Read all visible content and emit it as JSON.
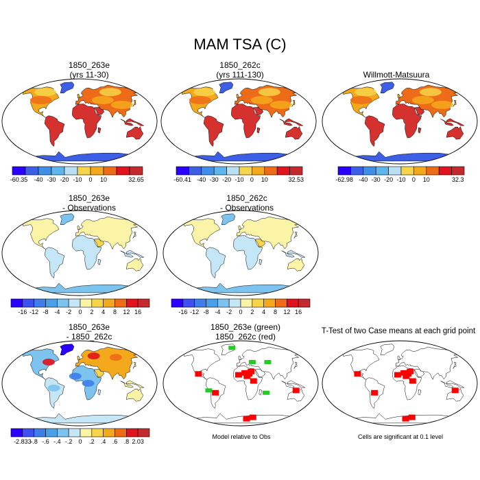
{
  "figure": {
    "title": "MAM TSA (C)"
  },
  "panels": [
    {
      "id": "p1",
      "title_lines": [
        "1850_263e",
        "(yrs 11-30)"
      ],
      "field": "abs"
    },
    {
      "id": "p2",
      "title_lines": [
        "1850_262c",
        "(yrs 111-130)"
      ],
      "field": "abs"
    },
    {
      "id": "p3",
      "title_lines": [
        "Willmott-Matsuura"
      ],
      "field": "abs"
    },
    {
      "id": "p4",
      "title_lines": [
        "1850_263e",
        "- Observations"
      ],
      "field": "bias"
    },
    {
      "id": "p5",
      "title_lines": [
        "1850_262c",
        "- Observations"
      ],
      "field": "bias"
    },
    {
      "id": "p6",
      "title_lines": [
        "1850_263e",
        "- 1850_262c"
      ],
      "field": "diff"
    },
    {
      "id": "p7",
      "title_lines": [
        "1850_263e (green)",
        "1850_262c (red)"
      ],
      "field": "mask2"
    },
    {
      "id": "p8",
      "title_lines": [
        "T-Test of two Case means at each grid point"
      ],
      "field": "mask1"
    }
  ],
  "colorbars": [
    {
      "id": "cb1",
      "labels": [
        "-60.35",
        "-40",
        "-30",
        "-20",
        "-10",
        "0",
        "10",
        "32.65"
      ],
      "colors": [
        "#2a00ff",
        "#3d5fe6",
        "#3f8ee8",
        "#5eb6ee",
        "#b9e0f5",
        "#f6d54a",
        "#f4a91c",
        "#ee6b17",
        "#e0141d",
        "#c4292d"
      ]
    },
    {
      "id": "cb2",
      "labels": [
        "-60.41",
        "-40",
        "-30",
        "-20",
        "-10",
        "0",
        "10",
        "32.53"
      ],
      "colors": [
        "#2a00ff",
        "#3d5fe6",
        "#3f8ee8",
        "#5eb6ee",
        "#b9e0f5",
        "#f6d54a",
        "#f4a91c",
        "#ee6b17",
        "#e0141d",
        "#c4292d"
      ]
    },
    {
      "id": "cb3",
      "labels": [
        "-62.98",
        "-40",
        "-30",
        "-20",
        "-10",
        "0",
        "10",
        "32.3"
      ],
      "colors": [
        "#2a00ff",
        "#3d5fe6",
        "#3f8ee8",
        "#5eb6ee",
        "#b9e0f5",
        "#f6d54a",
        "#f4a91c",
        "#ee6b17",
        "#e0141d",
        "#c4292d"
      ]
    },
    {
      "id": "cb4",
      "labels": [
        "-16",
        "-12",
        "-8",
        "-4",
        "-2",
        "0",
        "2",
        "4",
        "8",
        "12",
        "16"
      ],
      "colors": [
        "#2a00ff",
        "#3d50f0",
        "#3f7ee8",
        "#4a9fe9",
        "#7cc3f0",
        "#c4e6f7",
        "#fbf3a5",
        "#f6d54a",
        "#f4a91c",
        "#ee6b17",
        "#e0141d",
        "#c4292d"
      ]
    },
    {
      "id": "cb5",
      "labels": [
        "-16",
        "-12",
        "-8",
        "-4",
        "-2",
        "0",
        "2",
        "4",
        "8",
        "12",
        "16"
      ],
      "colors": [
        "#2a00ff",
        "#3d50f0",
        "#3f7ee8",
        "#4a9fe9",
        "#7cc3f0",
        "#c4e6f7",
        "#fbf3a5",
        "#f6d54a",
        "#f4a91c",
        "#ee6b17",
        "#e0141d",
        "#c4292d"
      ]
    },
    {
      "id": "cb6",
      "labels": [
        "-2.833",
        "-.8",
        "-.6",
        "-.4",
        "-.2",
        "0",
        ".2",
        ".4",
        ".6",
        ".8",
        "2.03"
      ],
      "colors": [
        "#2a00ff",
        "#3d50f0",
        "#3f7ee8",
        "#4a9fe9",
        "#7cc3f0",
        "#c4e6f7",
        "#fbf3a5",
        "#f6d54a",
        "#f4a91c",
        "#ee6b17",
        "#e0141d",
        "#c4292d"
      ]
    }
  ],
  "notes": {
    "model_relative": "Model relative to Obs",
    "significance": "Cells are significant at 0.1 level"
  }
}
